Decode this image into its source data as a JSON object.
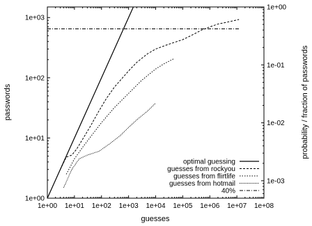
{
  "chart_data": {
    "type": "line",
    "title": "",
    "xlabel": "guesses",
    "ylabel": "passwords",
    "y2label": "probability / fraction of passwords",
    "xscale": "log",
    "yscale": "log",
    "y2scale": "log",
    "xlim": [
      1,
      100000000
    ],
    "ylim": [
      1,
      1500
    ],
    "y2lim": [
      0.0005,
      1
    ],
    "grid": false,
    "legend_position": "bottom-right",
    "x_ticks": [
      1,
      10,
      100,
      1000,
      10000,
      100000,
      1000000,
      10000000,
      100000000
    ],
    "x_tick_labels": [
      "1e+00",
      "1e+01",
      "1e+02",
      "1e+03",
      "1e+04",
      "1e+05",
      "1e+06",
      "1e+07",
      "1e+08"
    ],
    "y_ticks": [
      1,
      10,
      100,
      1000
    ],
    "y_tick_labels": [
      "1e+00",
      "1e+01",
      "1e+02",
      "1e+03"
    ],
    "y2_ticks": [
      0.001,
      0.01,
      0.1,
      1
    ],
    "y2_tick_labels": [
      "1e-03",
      "1e-02",
      "1e-01",
      "1e+00"
    ],
    "series": [
      {
        "name": "optimal guessing",
        "style": "solid",
        "points": [
          [
            1,
            1
          ],
          [
            1500,
            1500
          ]
        ]
      },
      {
        "name": "guesses from rockyou",
        "style": "dashed",
        "points": [
          [
            3,
            3
          ],
          [
            5,
            4.8
          ],
          [
            8,
            5.2
          ],
          [
            12,
            6.5
          ],
          [
            20,
            9.5
          ],
          [
            40,
            16
          ],
          [
            80,
            28
          ],
          [
            150,
            45
          ],
          [
            300,
            70
          ],
          [
            600,
            100
          ],
          [
            1000,
            130
          ],
          [
            2000,
            180
          ],
          [
            5000,
            250
          ],
          [
            10000,
            300
          ],
          [
            30000,
            360
          ],
          [
            100000,
            430
          ],
          [
            200000,
            500
          ],
          [
            500000,
            620
          ],
          [
            1000000,
            700
          ],
          [
            2000000,
            780
          ],
          [
            5000000,
            850
          ],
          [
            12000000,
            930
          ]
        ]
      },
      {
        "name": "guesses from flirtlife",
        "style": "dotted",
        "points": [
          [
            5,
            2.5
          ],
          [
            10,
            4.5
          ],
          [
            20,
            7
          ],
          [
            50,
            12
          ],
          [
            100,
            18
          ],
          [
            300,
            32
          ],
          [
            1000,
            55
          ],
          [
            3000,
            90
          ],
          [
            10000,
            140
          ],
          [
            20000,
            170
          ],
          [
            50000,
            210
          ]
        ]
      },
      {
        "name": "guesses from hotmail",
        "style": "dense-dotted",
        "points": [
          [
            4,
            1.5
          ],
          [
            8,
            3
          ],
          [
            15,
            4.5
          ],
          [
            30,
            5.2
          ],
          [
            80,
            6
          ],
          [
            200,
            8
          ],
          [
            500,
            11
          ],
          [
            1000,
            15
          ],
          [
            2000,
            20
          ],
          [
            5000,
            28
          ],
          [
            10000,
            38
          ]
        ]
      },
      {
        "name": "40%",
        "style": "dash-dot",
        "points": [
          [
            1,
            650
          ],
          [
            12000000,
            650
          ]
        ]
      }
    ]
  }
}
